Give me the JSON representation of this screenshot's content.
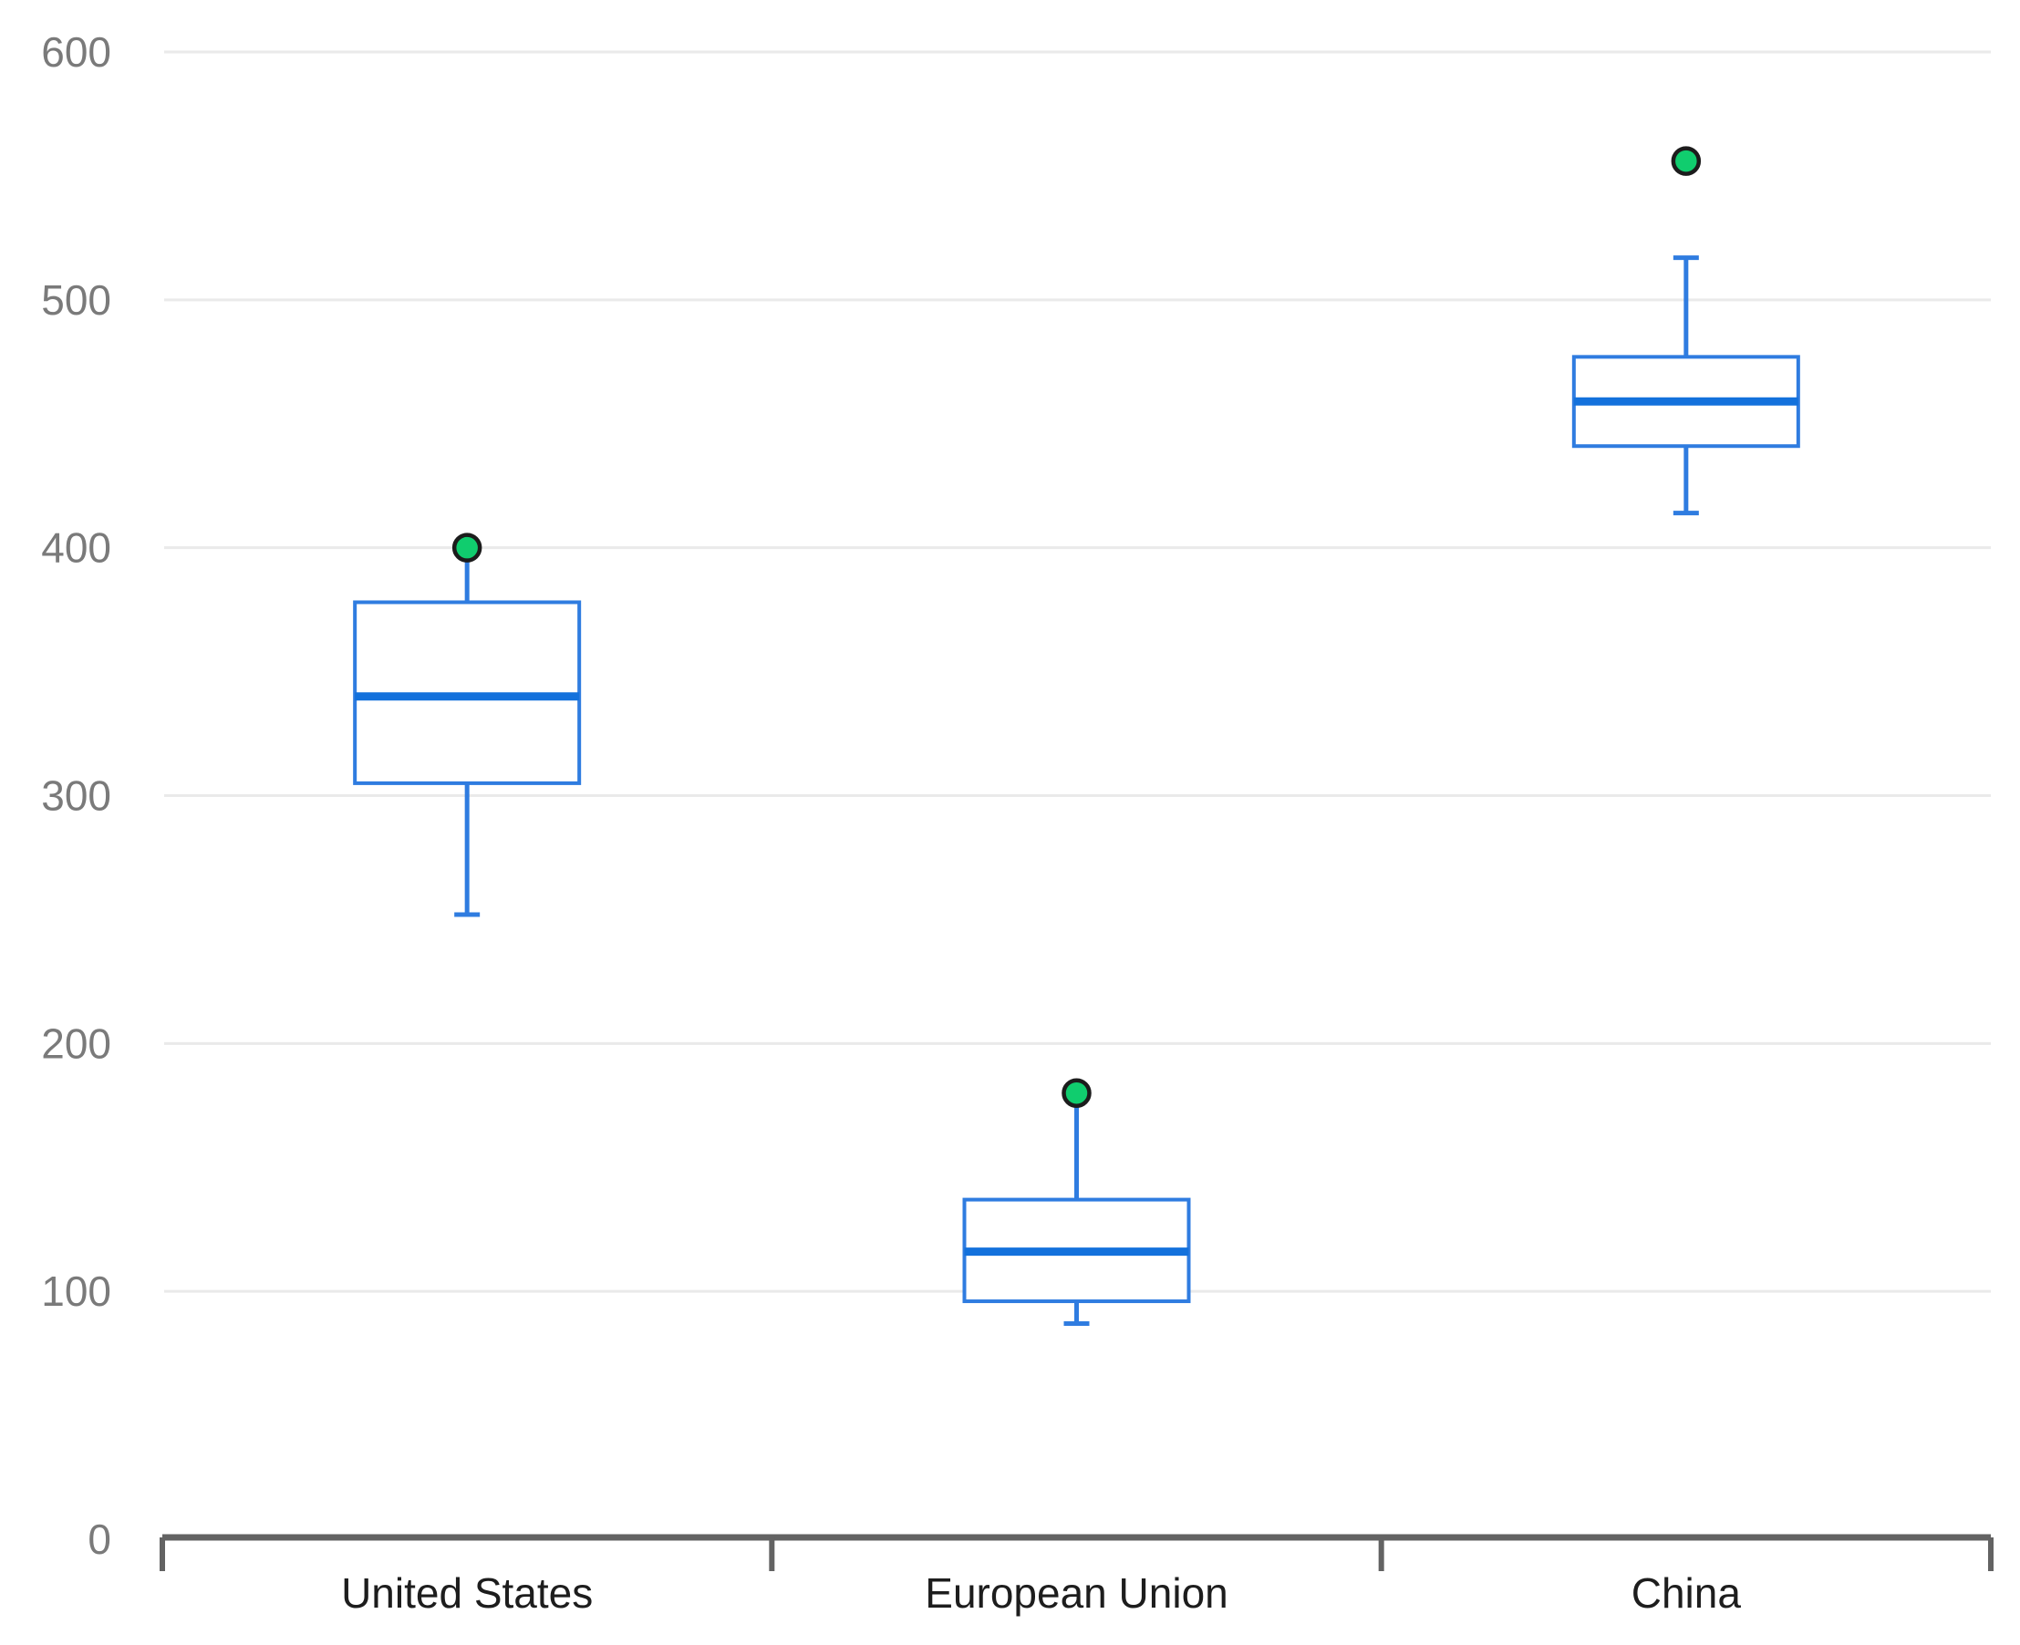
{
  "chart_data": {
    "type": "boxplot",
    "title": "",
    "xlabel": "",
    "ylabel": "",
    "categories": [
      "United States",
      "European Union",
      "China"
    ],
    "boxes": [
      {
        "category": "United States",
        "whisker_low": 252,
        "q1": 305,
        "median": 340,
        "q3": 378,
        "whisker_high": 400,
        "dot": 400
      },
      {
        "category": "European Union",
        "whisker_low": 87,
        "q1": 96,
        "median": 116,
        "q3": 137,
        "whisker_high": 180,
        "dot": 180
      },
      {
        "category": "China",
        "whisker_low": 414,
        "q1": 441,
        "median": 459,
        "q3": 477,
        "whisker_high": 517,
        "dot": 556
      }
    ],
    "ylim": [
      0,
      600
    ],
    "yticks": [
      0,
      100,
      200,
      300,
      400,
      500,
      600
    ],
    "grid": true,
    "legend_position": "none"
  },
  "colors": {
    "background": "#ffffff",
    "box_border": "#2f7ce0",
    "box_fill": "#ffffff",
    "median_line": "#1371dc",
    "whisker": "#2f7ce0",
    "dot_fill": "#10cd6e",
    "dot_border": "#1c1c1c",
    "gridline": "#eaeaea",
    "axis_line": "#636363",
    "y_tick_label": "#7a7a7a",
    "x_tick_label": "#1d1d1d"
  }
}
